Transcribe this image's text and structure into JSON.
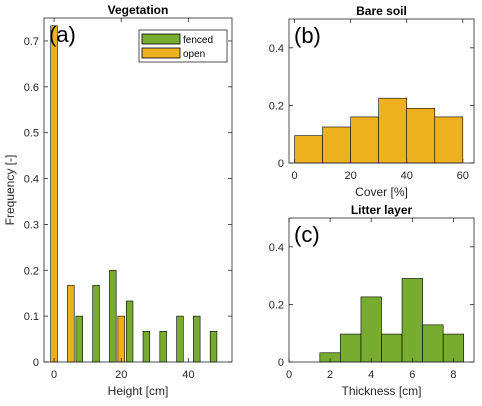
{
  "colors": {
    "fenced": "#77ac30",
    "open": "#edb120",
    "edge": "#000000",
    "axis": "#262626"
  },
  "chart_data": [
    {
      "panel": "a",
      "type": "bar",
      "title": "Vegetation",
      "panel_letter": "(a)",
      "xlabel": "Height [cm]",
      "ylabel": "Frequency [-]",
      "xlim": [
        -3,
        53
      ],
      "ylim": [
        0,
        0.75
      ],
      "xticks": [
        0,
        20,
        40
      ],
      "yticks": [
        0,
        0.1,
        0.2,
        0.3,
        0.4,
        0.5,
        0.6,
        0.7
      ],
      "ytick_labels": [
        "0",
        "0.1",
        "0.2",
        "0.3",
        "0.4",
        "0.5",
        "0.6",
        "0.7"
      ],
      "legend_position": "top-right",
      "series": [
        {
          "name": "fenced",
          "color_key": "fenced",
          "x": [
            7.5,
            12.5,
            17.5,
            22.5,
            27.5,
            32.5,
            37.5,
            42.5,
            47.5
          ],
          "values": [
            0.1,
            0.167,
            0.2,
            0.133,
            0.067,
            0.067,
            0.1,
            0.1,
            0.067
          ]
        },
        {
          "name": "open",
          "color_key": "open",
          "x": [
            0,
            5,
            20
          ],
          "values": [
            0.733,
            0.167,
            0.1
          ]
        }
      ]
    },
    {
      "panel": "b",
      "type": "histogram",
      "title": "Bare soil",
      "panel_letter": "(b)",
      "xlabel": "Cover [%]",
      "xlim": [
        -2,
        64
      ],
      "ylim": [
        0,
        0.5
      ],
      "xticks": [
        0,
        20,
        40,
        60
      ],
      "yticks": [
        0,
        0.2,
        0.4
      ],
      "ytick_labels": [
        "0",
        "0.2",
        "0.4"
      ],
      "color_key": "open",
      "bin_edges": [
        0,
        10,
        20,
        30,
        40,
        50,
        60
      ],
      "values": [
        0.095,
        0.125,
        0.16,
        0.225,
        0.19,
        0.16
      ]
    },
    {
      "panel": "c",
      "type": "histogram",
      "title": "Litter layer",
      "panel_letter": "(c)",
      "xlabel": "Thickness [cm]",
      "xlim": [
        0,
        9
      ],
      "ylim": [
        0,
        0.5
      ],
      "xticks": [
        0,
        2,
        4,
        6,
        8
      ],
      "yticks": [
        0,
        0.2,
        0.4
      ],
      "ytick_labels": [
        "0",
        "0.2",
        "0.4"
      ],
      "color_key": "fenced",
      "bin_edges": [
        1.5,
        2.5,
        3.5,
        4.5,
        5.5,
        6.5,
        7.5,
        8.5
      ],
      "values": [
        0.032,
        0.097,
        0.226,
        0.097,
        0.29,
        0.129,
        0.097
      ]
    }
  ]
}
